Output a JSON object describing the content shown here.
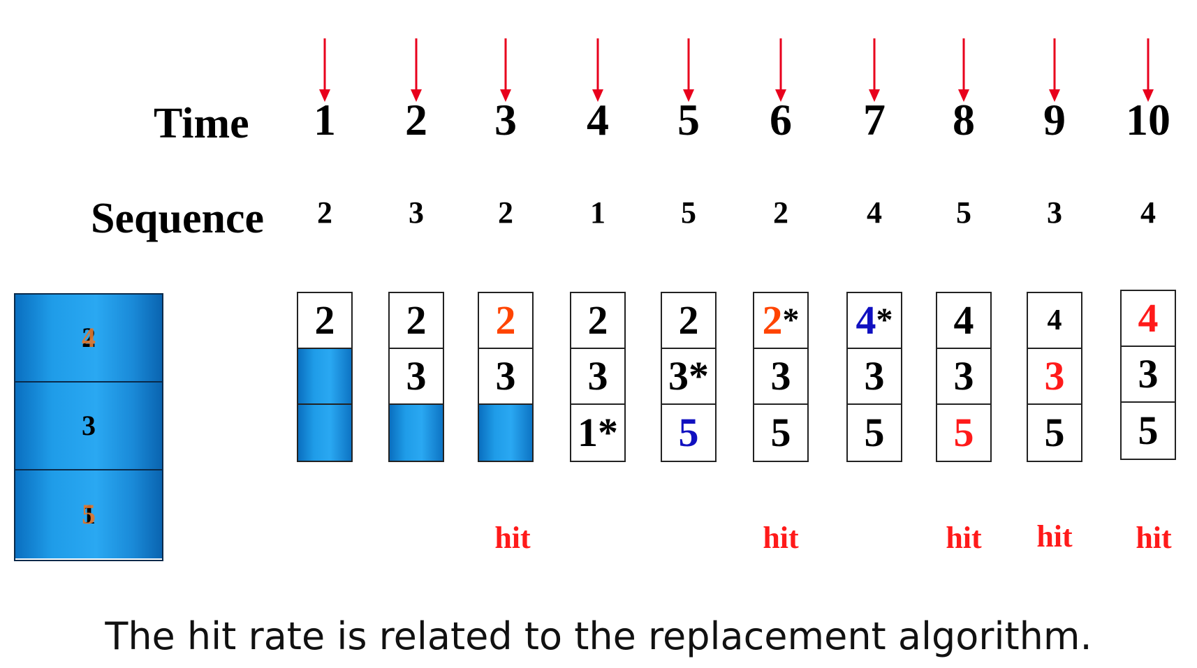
{
  "time_label": "Time",
  "sequence_label": "Sequence",
  "time_steps": [
    "1",
    "2",
    "3",
    "4",
    "5",
    "6",
    "7",
    "8",
    "9",
    "10"
  ],
  "sequence": [
    "2",
    "3",
    "2",
    "1",
    "5",
    "2",
    "4",
    "5",
    "3",
    "4"
  ],
  "colors": {
    "arrow": "#e8001c",
    "hit": "#ff1a1a",
    "highlight_orange": "#ff4400",
    "highlight_blue": "#1010c0",
    "cache_blue": "#2aa8f2"
  },
  "frames": [
    [
      {
        "t": "2",
        "c": "black"
      },
      {
        "t": "",
        "c": "empty"
      },
      {
        "t": "",
        "c": "empty"
      }
    ],
    [
      {
        "t": "2",
        "c": "black"
      },
      {
        "t": "3",
        "c": "black"
      },
      {
        "t": "",
        "c": "empty"
      }
    ],
    [
      {
        "t": "2",
        "c": "orange"
      },
      {
        "t": "3",
        "c": "black"
      },
      {
        "t": "",
        "c": "empty"
      }
    ],
    [
      {
        "t": "2",
        "c": "black"
      },
      {
        "t": "3",
        "c": "black"
      },
      {
        "t": "1*",
        "c": "black"
      }
    ],
    [
      {
        "t": "2",
        "c": "black"
      },
      {
        "t": "3*",
        "c": "black"
      },
      {
        "t": "5",
        "c": "blue"
      }
    ],
    [
      {
        "t": "2",
        "c": "orange",
        "star": "*"
      },
      {
        "t": "3",
        "c": "black"
      },
      {
        "t": "5",
        "c": "black"
      }
    ],
    [
      {
        "t": "4",
        "c": "blue",
        "star": "*"
      },
      {
        "t": "3",
        "c": "black"
      },
      {
        "t": "5",
        "c": "black"
      }
    ],
    [
      {
        "t": "4",
        "c": "black"
      },
      {
        "t": "3",
        "c": "black"
      },
      {
        "t": "5",
        "c": "red"
      }
    ],
    [
      {
        "t": "4",
        "c": "black",
        "small": true
      },
      {
        "t": "3",
        "c": "red"
      },
      {
        "t": "5",
        "c": "black"
      }
    ],
    [
      {
        "t": "4",
        "c": "red"
      },
      {
        "t": "3",
        "c": "black"
      },
      {
        "t": "5",
        "c": "black"
      }
    ]
  ],
  "hit_label": "hit",
  "hits": [
    3,
    6,
    8,
    9,
    10
  ],
  "cache_blocks": [
    {
      "back": "2",
      "front": "4"
    },
    {
      "back": "3",
      "front": ""
    },
    {
      "back": "1",
      "front": "5"
    }
  ],
  "caption": "The hit rate is related to the replacement algorithm."
}
